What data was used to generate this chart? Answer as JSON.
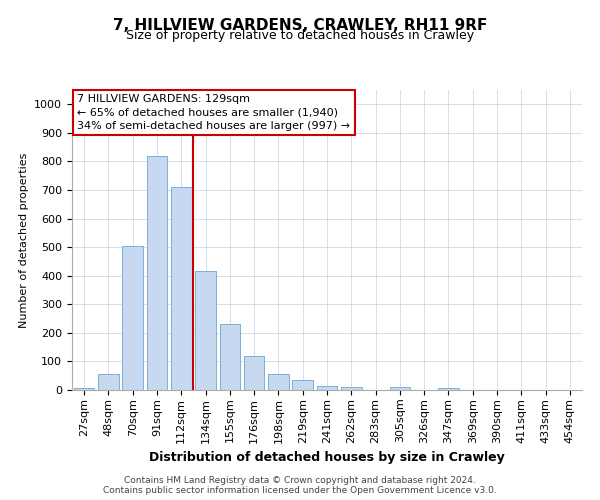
{
  "title": "7, HILLVIEW GARDENS, CRAWLEY, RH11 9RF",
  "subtitle": "Size of property relative to detached houses in Crawley",
  "xlabel": "Distribution of detached houses by size in Crawley",
  "ylabel": "Number of detached properties",
  "categories": [
    "27sqm",
    "48sqm",
    "70sqm",
    "91sqm",
    "112sqm",
    "134sqm",
    "155sqm",
    "176sqm",
    "198sqm",
    "219sqm",
    "241sqm",
    "262sqm",
    "283sqm",
    "305sqm",
    "326sqm",
    "347sqm",
    "369sqm",
    "390sqm",
    "411sqm",
    "433sqm",
    "454sqm"
  ],
  "values": [
    8,
    55,
    505,
    820,
    710,
    415,
    230,
    118,
    55,
    35,
    15,
    12,
    0,
    12,
    0,
    8,
    0,
    0,
    0,
    0,
    0
  ],
  "bar_color": "#c6d9f0",
  "bar_edge_color": "#7ab0d8",
  "grid_color": "#ccd9e8",
  "background_color": "#ffffff",
  "property_line_color": "#cc0000",
  "property_line_index": 5,
  "annotation_box_text": "7 HILLVIEW GARDENS: 129sqm\n← 65% of detached houses are smaller (1,940)\n34% of semi-detached houses are larger (997) →",
  "ylim": [
    0,
    1050
  ],
  "yticks": [
    0,
    100,
    200,
    300,
    400,
    500,
    600,
    700,
    800,
    900,
    1000
  ],
  "title_fontsize": 11,
  "subtitle_fontsize": 9,
  "xlabel_fontsize": 9,
  "ylabel_fontsize": 8,
  "tick_fontsize": 8,
  "annot_fontsize": 8,
  "footer_line1": "Contains HM Land Registry data © Crown copyright and database right 2024.",
  "footer_line2": "Contains public sector information licensed under the Open Government Licence v3.0."
}
